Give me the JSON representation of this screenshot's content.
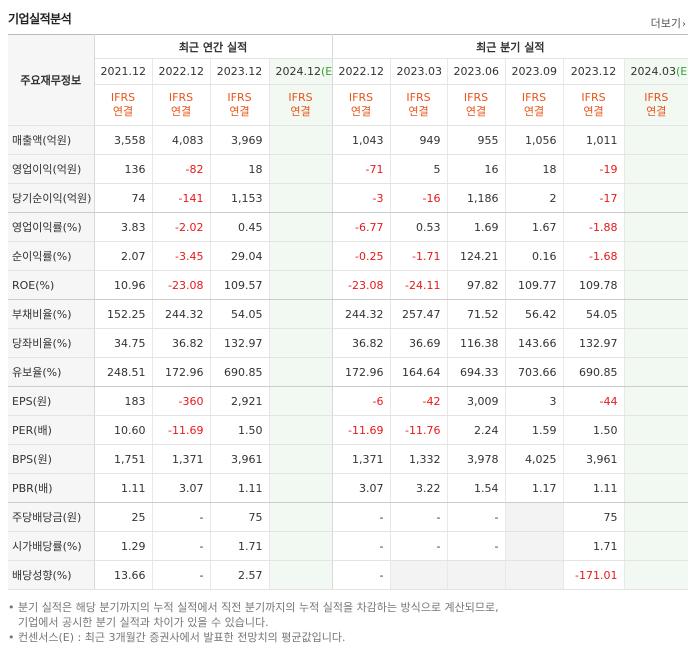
{
  "header": {
    "title": "기업실적분석",
    "more_label": "더보기"
  },
  "table": {
    "corner_label": "주요재무정보",
    "annual_group_label": "최근 연간 실적",
    "quarter_group_label": "최근 분기 실적",
    "annual_periods": [
      "2021.12",
      "2022.12",
      "2023.12",
      "2024.12"
    ],
    "quarter_periods": [
      "2022.12",
      "2023.03",
      "2023.06",
      "2023.09",
      "2023.12",
      "2024.03"
    ],
    "estimate_suffix": "(E)",
    "ifrs_line1": "IFRS",
    "ifrs_line2": "연결",
    "rows": [
      {
        "label": "매출액(억원)",
        "annual": [
          "3,558",
          "4,083",
          "3,969",
          ""
        ],
        "quarter": [
          "1,043",
          "949",
          "955",
          "1,056",
          "1,011",
          ""
        ]
      },
      {
        "label": "영업이익(억원)",
        "annual": [
          "136",
          "-82",
          "18",
          ""
        ],
        "quarter": [
          "-71",
          "5",
          "16",
          "18",
          "-19",
          ""
        ]
      },
      {
        "label": "당기순이익(억원)",
        "annual": [
          "74",
          "-141",
          "1,153",
          ""
        ],
        "quarter": [
          "-3",
          "-16",
          "1,186",
          "2",
          "-17",
          ""
        ]
      },
      {
        "label": "영업이익률(%)",
        "annual": [
          "3.83",
          "-2.02",
          "0.45",
          ""
        ],
        "quarter": [
          "-6.77",
          "0.53",
          "1.69",
          "1.67",
          "-1.88",
          ""
        ]
      },
      {
        "label": "순이익률(%)",
        "annual": [
          "2.07",
          "-3.45",
          "29.04",
          ""
        ],
        "quarter": [
          "-0.25",
          "-1.71",
          "124.21",
          "0.16",
          "-1.68",
          ""
        ]
      },
      {
        "label": "ROE(%)",
        "annual": [
          "10.96",
          "-23.08",
          "109.57",
          ""
        ],
        "quarter": [
          "-23.08",
          "-24.11",
          "97.82",
          "109.77",
          "109.78",
          ""
        ]
      },
      {
        "label": "부채비율(%)",
        "annual": [
          "152.25",
          "244.32",
          "54.05",
          ""
        ],
        "quarter": [
          "244.32",
          "257.47",
          "71.52",
          "56.42",
          "54.05",
          ""
        ]
      },
      {
        "label": "당좌비율(%)",
        "annual": [
          "34.75",
          "36.82",
          "132.97",
          ""
        ],
        "quarter": [
          "36.82",
          "36.69",
          "116.38",
          "143.66",
          "132.97",
          ""
        ]
      },
      {
        "label": "유보율(%)",
        "annual": [
          "248.51",
          "172.96",
          "690.85",
          ""
        ],
        "quarter": [
          "172.96",
          "164.64",
          "694.33",
          "703.66",
          "690.85",
          ""
        ]
      },
      {
        "label": "EPS(원)",
        "annual": [
          "183",
          "-360",
          "2,921",
          ""
        ],
        "quarter": [
          "-6",
          "-42",
          "3,009",
          "3",
          "-44",
          ""
        ]
      },
      {
        "label": "PER(배)",
        "annual": [
          "10.60",
          "-11.69",
          "1.50",
          ""
        ],
        "quarter": [
          "-11.69",
          "-11.76",
          "2.24",
          "1.59",
          "1.50",
          ""
        ]
      },
      {
        "label": "BPS(원)",
        "annual": [
          "1,751",
          "1,371",
          "3,961",
          ""
        ],
        "quarter": [
          "1,371",
          "1,332",
          "3,978",
          "4,025",
          "3,961",
          ""
        ]
      },
      {
        "label": "PBR(배)",
        "annual": [
          "1.11",
          "3.07",
          "1.11",
          ""
        ],
        "quarter": [
          "3.07",
          "3.22",
          "1.54",
          "1.17",
          "1.11",
          ""
        ]
      },
      {
        "label": "주당배당금(원)",
        "annual": [
          "25",
          "-",
          "75",
          ""
        ],
        "quarter": [
          "-",
          "-",
          "-",
          "",
          "75",
          ""
        ]
      },
      {
        "label": "시가배당률(%)",
        "annual": [
          "1.29",
          "-",
          "1.71",
          ""
        ],
        "quarter": [
          "-",
          "-",
          "-",
          "",
          "1.71",
          ""
        ]
      },
      {
        "label": "배당성향(%)",
        "annual": [
          "13.66",
          "-",
          "2.57",
          ""
        ],
        "quarter": [
          "-",
          "",
          "",
          "",
          "-171.01",
          ""
        ]
      }
    ]
  },
  "notes": {
    "line1": "분기 실적은 해당 분기까지의 누적 실적에서 직전 분기까지의 누적 실적을 차감하는 방식으로 계산되므로,",
    "line2": "기업에서 공시한 분기 실적과 차이가 있을 수 있습니다.",
    "line3": "컨센서스(E) : 최근 3개월간 증권사에서 발표한 전망치의 평균값입니다."
  },
  "colors": {
    "negative": "#e8181a",
    "ifrs": "#e8541a",
    "estimate_bg": "#f2f9f2",
    "estimate_mark": "#3aa13a"
  }
}
